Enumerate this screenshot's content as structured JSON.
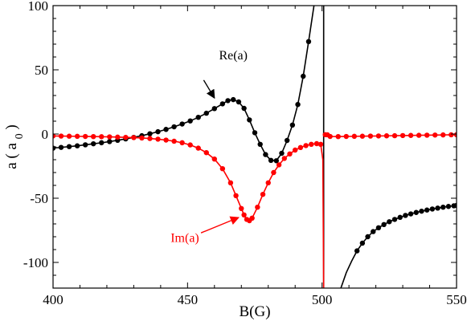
{
  "chart_data": {
    "type": "line",
    "xlabel": "B(G)",
    "ylabel_main": "a ( a",
    "ylabel_sub": "0",
    "ylabel_close": ")",
    "xlim": [
      400,
      550
    ],
    "ylim": [
      -120,
      100
    ],
    "x_ticks": [
      400,
      450,
      500,
      550
    ],
    "y_ticks": [
      -100,
      -50,
      0,
      50,
      100
    ],
    "x_tick_labels": [
      "400",
      "450",
      "500",
      "550"
    ],
    "y_tick_labels": [
      "-100",
      "-50",
      "0",
      "50",
      "100"
    ],
    "grid": false,
    "resonance_line_x": 500.6,
    "series": [
      {
        "name": "Re(a)",
        "color": "#000000",
        "marker": "circle",
        "points": [
          [
            400,
            -11
          ],
          [
            403,
            -10.4
          ],
          [
            406,
            -9.8
          ],
          [
            409,
            -9.2
          ],
          [
            412,
            -8.4
          ],
          [
            415,
            -7.6
          ],
          [
            418,
            -6.8
          ],
          [
            421,
            -5.9
          ],
          [
            424,
            -4.9
          ],
          [
            427,
            -3.8
          ],
          [
            430,
            -2.6
          ],
          [
            433,
            -1.3
          ],
          [
            436,
            0.2
          ],
          [
            439,
            1.8
          ],
          [
            442,
            3.6
          ],
          [
            445,
            5.6
          ],
          [
            448,
            7.8
          ],
          [
            451,
            10.2
          ],
          [
            454,
            13.0
          ],
          [
            457,
            16.2
          ],
          [
            460,
            19.8
          ],
          [
            463,
            23.5
          ],
          [
            465,
            26.0
          ],
          [
            467,
            26.8
          ],
          [
            469,
            25.0
          ],
          [
            471,
            20.0
          ],
          [
            473,
            11.0
          ],
          [
            475,
            1.0
          ],
          [
            477,
            -8.0
          ],
          [
            479,
            -16.0
          ],
          [
            481,
            -20.5
          ],
          [
            483,
            -20.8
          ],
          [
            485,
            -15.0
          ],
          [
            487,
            -5.0
          ],
          [
            489,
            7.0
          ],
          [
            491,
            23.0
          ],
          [
            493,
            45.0
          ],
          [
            495,
            72.0
          ],
          [
            497,
            100
          ]
        ],
        "points_right": [
          [
            507,
            -120
          ],
          [
            509,
            -108
          ],
          [
            511,
            -99
          ],
          [
            513,
            -91
          ],
          [
            515,
            -85
          ],
          [
            517,
            -80
          ],
          [
            519,
            -76
          ],
          [
            521,
            -73
          ],
          [
            523,
            -70.5
          ],
          [
            525,
            -68.3
          ],
          [
            527,
            -66.5
          ],
          [
            529,
            -64.9
          ],
          [
            531,
            -63.4
          ],
          [
            533,
            -62.2
          ],
          [
            535,
            -61.1
          ],
          [
            537,
            -60.1
          ],
          [
            539,
            -59.2
          ],
          [
            541,
            -58.4
          ],
          [
            543,
            -57.7
          ],
          [
            545,
            -57.0
          ],
          [
            547,
            -56.4
          ],
          [
            549,
            -55.9
          ],
          [
            550,
            -55.6
          ]
        ],
        "markers_right_from": 512.5
      },
      {
        "name": "Im(a)",
        "color": "#ff0000",
        "marker": "circle",
        "points": [
          [
            400,
            -1.5
          ],
          [
            403,
            -1.6
          ],
          [
            406,
            -1.7
          ],
          [
            409,
            -1.8
          ],
          [
            412,
            -1.9
          ],
          [
            415,
            -2.0
          ],
          [
            418,
            -2.1
          ],
          [
            421,
            -2.2
          ],
          [
            424,
            -2.4
          ],
          [
            427,
            -2.6
          ],
          [
            430,
            -2.8
          ],
          [
            433,
            -3.1
          ],
          [
            436,
            -3.5
          ],
          [
            439,
            -4.0
          ],
          [
            442,
            -4.7
          ],
          [
            445,
            -5.6
          ],
          [
            448,
            -6.8
          ],
          [
            451,
            -8.5
          ],
          [
            454,
            -11.0
          ],
          [
            457,
            -14.5
          ],
          [
            460,
            -19.5
          ],
          [
            463,
            -27.0
          ],
          [
            466,
            -38.0
          ],
          [
            468,
            -48.0
          ],
          [
            470,
            -58.0
          ],
          [
            471,
            -63.0
          ],
          [
            472,
            -66.5
          ],
          [
            473,
            -67.5
          ],
          [
            474,
            -65.5
          ],
          [
            476,
            -57.0
          ],
          [
            478,
            -47.0
          ],
          [
            480,
            -38.0
          ],
          [
            482,
            -30.0
          ],
          [
            484,
            -24.0
          ],
          [
            486,
            -19.0
          ],
          [
            488,
            -15.5
          ],
          [
            490,
            -12.5
          ],
          [
            492,
            -10.5
          ],
          [
            494,
            -9.0
          ],
          [
            496,
            -8.0
          ],
          [
            498,
            -7.5
          ],
          [
            499.5,
            -8.0
          ],
          [
            500.3,
            -20.0
          ],
          [
            500.6,
            -120
          ]
        ],
        "points_right": [
          [
            501.2,
            -0.5
          ],
          [
            502,
            -0.6
          ],
          [
            503,
            -1.9
          ],
          [
            506,
            -2.0
          ],
          [
            509,
            -1.9
          ],
          [
            512,
            -1.8
          ],
          [
            515,
            -1.7
          ],
          [
            518,
            -1.6
          ],
          [
            521,
            -1.5
          ],
          [
            524,
            -1.4
          ],
          [
            527,
            -1.3
          ],
          [
            530,
            -1.2
          ],
          [
            533,
            -1.1
          ],
          [
            536,
            -1.0
          ],
          [
            539,
            -0.9
          ],
          [
            542,
            -0.8
          ],
          [
            545,
            -0.7
          ],
          [
            548,
            -0.6
          ],
          [
            550,
            -0.55
          ]
        ],
        "markers_right_from": 501
      }
    ],
    "annotations": [
      {
        "text": "Re(a)",
        "x": 467,
        "y": 58,
        "color": "#000000",
        "arrow_to": [
          460,
          28
        ],
        "arrow_from": [
          456,
          42
        ]
      },
      {
        "text": "Im(a)",
        "x": 449,
        "y": -84,
        "color": "#ff0000",
        "arrow_to": [
          469,
          -65
        ],
        "arrow_from": [
          455,
          -77
        ]
      }
    ]
  }
}
